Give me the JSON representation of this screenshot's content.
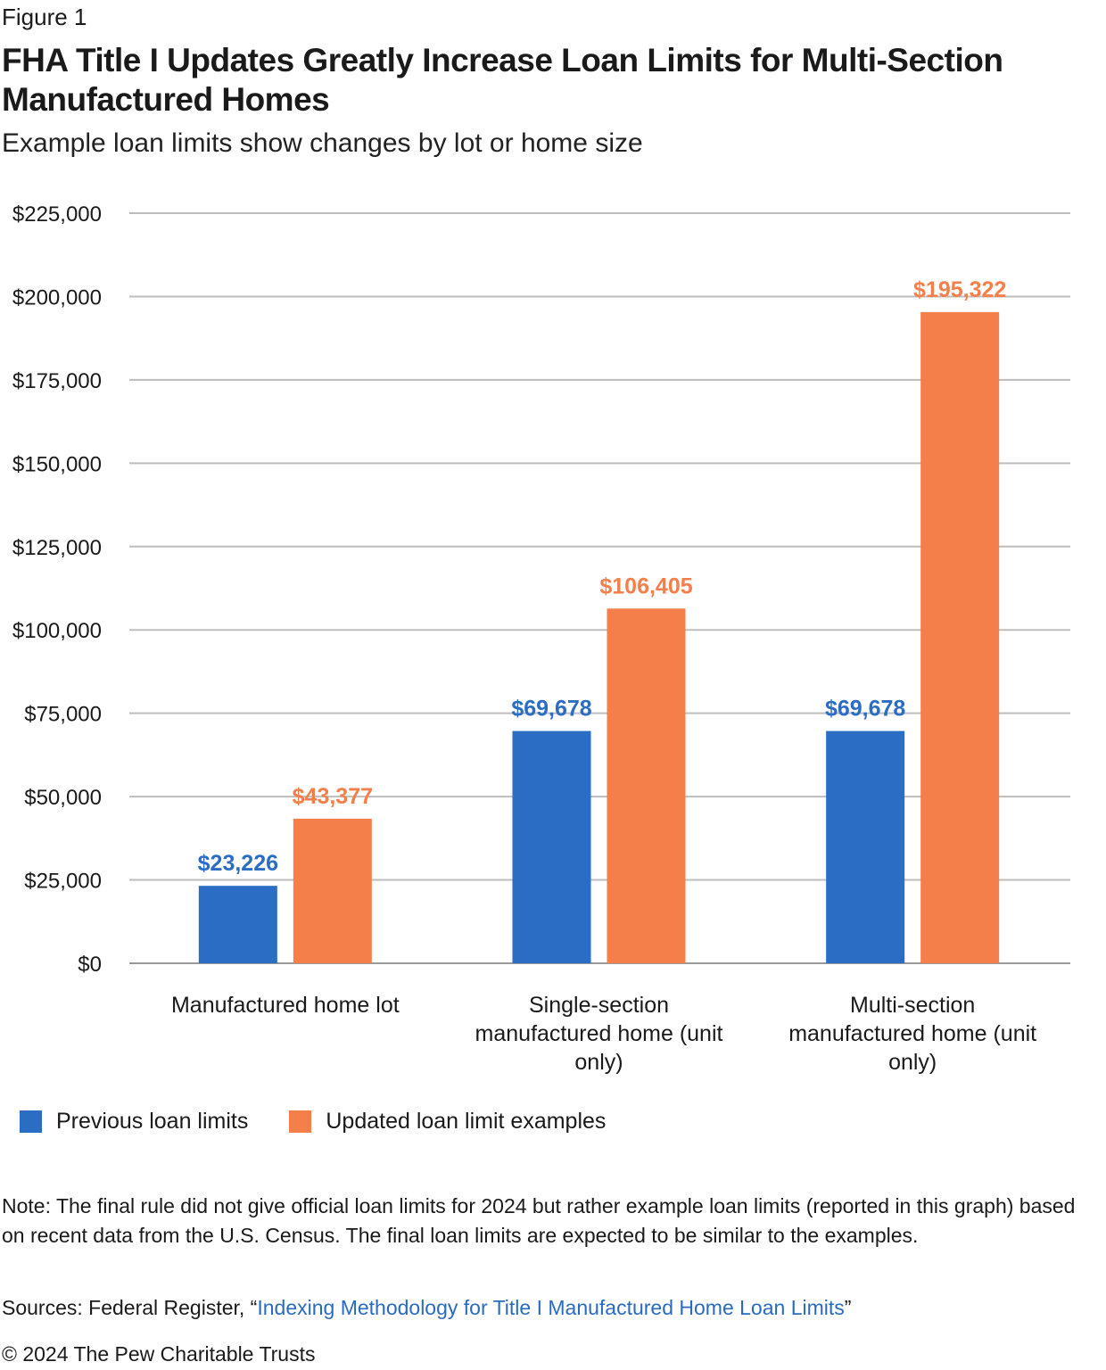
{
  "figure_label": "Figure 1",
  "note": "Note: The final rule did not give official loan limits for 2024 but rather example loan limits (reported in this graph) based on recent data from the U.S. Census. The final loan limits are expected to be similar to the examples.",
  "sources": {
    "prefix": "Sources: Federal Register, “",
    "link_text": "Indexing Methodology for Title I Manufactured Home Loan Limits",
    "suffix": "”"
  },
  "copyright": "© 2024 The Pew Charitable Trusts",
  "chart_data": {
    "type": "bar",
    "title": "FHA Title I Updates Greatly Increase Loan Limits for Multi-Section Manufactured Homes",
    "subtitle": "Example loan limits show changes by lot or home size",
    "categories": [
      "Manufactured home lot",
      "Single-section manufactured home (unit only)",
      "Multi-section manufactured home (unit only)"
    ],
    "series": [
      {
        "name": "Previous loan limits",
        "color": "#2b6dc4",
        "values": [
          23226,
          69678,
          69678
        ],
        "labels": [
          "$23,226",
          "$69,678",
          "$69,678"
        ]
      },
      {
        "name": "Updated loan limit examples",
        "color": "#f47f4b",
        "values": [
          43377,
          106405,
          195322
        ],
        "labels": [
          "$43,377",
          "$106,405",
          "$195,322"
        ]
      }
    ],
    "ylim": [
      0,
      225000
    ],
    "yticks": [
      0,
      25000,
      50000,
      75000,
      100000,
      125000,
      150000,
      175000,
      200000,
      225000
    ],
    "ytick_labels": [
      "$0",
      "$25,000",
      "$50,000",
      "$75,000",
      "$100,000",
      "$125,000",
      "$150,000",
      "$175,000",
      "$200,000",
      "$225,000"
    ],
    "grid": true,
    "legend": "bottom-left",
    "xlabel": "",
    "ylabel": ""
  }
}
